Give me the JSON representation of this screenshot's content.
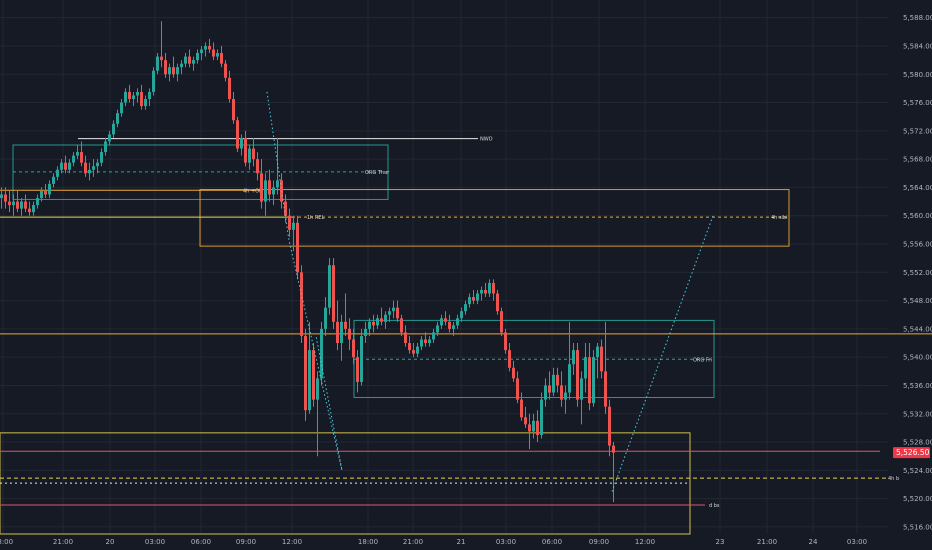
{
  "theme": {
    "background": "#161a25",
    "grid": "#232733",
    "axis_text": "#b2b5be",
    "up": "#26a69a",
    "down": "#ef5350",
    "orange": "#f0a830",
    "teal": "#26a69a",
    "cyan": "#4dd0e1",
    "yellow": "#e6d64a",
    "pink": "#e0516d",
    "white": "#e8e8e8",
    "price_tag": "#f23645"
  },
  "chart_data": {
    "type": "candlestick",
    "y_range": [
      5515.0,
      5590.5
    ],
    "x_range": [
      0,
      932
    ],
    "y_ticks": [
      "5,516.00",
      "5,520.00",
      "5,524.00",
      "5,528.00",
      "5,532.00",
      "5,536.00",
      "5,540.00",
      "5,544.00",
      "5,548.00",
      "5,552.00",
      "5,556.00",
      "5,560.00",
      "5,564.00",
      "5,568.00",
      "5,572.00",
      "5,576.00",
      "5,580.00",
      "5,584.00",
      "5,588.00"
    ],
    "x_ticks": [
      {
        "label": "18:00",
        "x": 3
      },
      {
        "label": "21:00",
        "x": 63
      },
      {
        "label": "20",
        "x": 110
      },
      {
        "label": "03:00",
        "x": 155
      },
      {
        "label": "06:00",
        "x": 201
      },
      {
        "label": "09:00",
        "x": 246
      },
      {
        "label": "12:00",
        "x": 292
      },
      {
        "label": "18:00",
        "x": 368
      },
      {
        "label": "21:00",
        "x": 413
      },
      {
        "label": "21",
        "x": 461
      },
      {
        "label": "03:00",
        "x": 506
      },
      {
        "label": "06:00",
        "x": 552
      },
      {
        "label": "09:00",
        "x": 599
      },
      {
        "label": "12:00",
        "x": 645
      },
      {
        "label": "23",
        "x": 720
      },
      {
        "label": "21:00",
        "x": 767
      },
      {
        "label": "24",
        "x": 813
      },
      {
        "label": "03:00",
        "x": 857
      }
    ],
    "current_price": "5,526.50",
    "candles": [
      [
        0,
        5562.5,
        5564,
        5561,
        5563
      ],
      [
        4,
        5563,
        5564,
        5561,
        5562
      ],
      [
        8,
        5562,
        5563.5,
        5560.5,
        5561.5
      ],
      [
        12,
        5561.5,
        5563,
        5560,
        5562
      ],
      [
        16,
        5562,
        5563.5,
        5560.5,
        5561
      ],
      [
        20,
        5561,
        5562.5,
        5560,
        5562
      ],
      [
        24,
        5562,
        5563,
        5560.5,
        5561
      ],
      [
        28,
        5561,
        5562,
        5560,
        5560.5
      ],
      [
        32,
        5560.5,
        5562,
        5560,
        5561.5
      ],
      [
        36,
        5561.5,
        5563,
        5561,
        5562.5
      ],
      [
        40,
        5562.5,
        5564,
        5562,
        5563.5
      ],
      [
        44,
        5563.5,
        5564.5,
        5562.5,
        5563
      ],
      [
        48,
        5563,
        5565,
        5562.5,
        5564.5
      ],
      [
        52,
        5564.5,
        5566,
        5564,
        5565.5
      ],
      [
        56,
        5565.5,
        5567,
        5565,
        5566.5
      ],
      [
        60,
        5566.5,
        5568,
        5566,
        5567.5
      ],
      [
        64,
        5567.5,
        5568.5,
        5566,
        5566.5
      ],
      [
        68,
        5566.5,
        5568,
        5566,
        5567.5
      ],
      [
        72,
        5567.5,
        5569,
        5567,
        5568.5
      ],
      [
        76,
        5568.5,
        5570,
        5568,
        5569
      ],
      [
        80,
        5569,
        5570.5,
        5567,
        5567.5
      ],
      [
        84,
        5567.5,
        5568.5,
        5565.5,
        5566
      ],
      [
        88,
        5566,
        5567.5,
        5565,
        5566.5
      ],
      [
        92,
        5566.5,
        5568,
        5565.5,
        5567
      ],
      [
        96,
        5567,
        5568,
        5566,
        5567.5
      ],
      [
        100,
        5567.5,
        5569.5,
        5567,
        5569
      ],
      [
        104,
        5569,
        5571,
        5568.5,
        5570.5
      ],
      [
        108,
        5570.5,
        5572,
        5570,
        5571.5
      ],
      [
        112,
        5571.5,
        5573.5,
        5571,
        5573
      ],
      [
        116,
        5573,
        5575,
        5572.5,
        5574.5
      ],
      [
        120,
        5574.5,
        5576.5,
        5574,
        5576
      ],
      [
        124,
        5576,
        5578,
        5575.5,
        5577.5
      ],
      [
        128,
        5577.5,
        5578.5,
        5576,
        5576.5
      ],
      [
        132,
        5576.5,
        5577.5,
        5575.5,
        5577
      ],
      [
        136,
        5577,
        5578,
        5576,
        5577.5
      ],
      [
        140,
        5577.5,
        5578.5,
        5575,
        5575.5
      ],
      [
        144,
        5575.5,
        5577,
        5575,
        5576.5
      ],
      [
        148,
        5576.5,
        5578,
        5575.5,
        5577.5
      ],
      [
        152,
        5577.5,
        5581,
        5577,
        5580.5
      ],
      [
        156,
        5580.5,
        5583,
        5580,
        5582.5
      ],
      [
        160,
        5582.5,
        5587.5,
        5581,
        5582
      ],
      [
        164,
        5582,
        5583,
        5579.5,
        5580
      ],
      [
        168,
        5580,
        5581.5,
        5579,
        5581
      ],
      [
        172,
        5581,
        5582.5,
        5579.5,
        5580
      ],
      [
        176,
        5580,
        5581.5,
        5579,
        5581
      ],
      [
        180,
        5581,
        5582,
        5580,
        5581.5
      ],
      [
        184,
        5581.5,
        5583,
        5581,
        5582.5
      ],
      [
        188,
        5582.5,
        5583.5,
        5581,
        5581.5
      ],
      [
        192,
        5581.5,
        5582.5,
        5580.5,
        5582
      ],
      [
        196,
        5582,
        5583.5,
        5581.5,
        5583
      ],
      [
        200,
        5583,
        5584,
        5582,
        5583.5
      ],
      [
        204,
        5583.5,
        5584.5,
        5582.5,
        5584
      ],
      [
        208,
        5584,
        5585,
        5583,
        5583.5
      ],
      [
        212,
        5583.5,
        5584.5,
        5582,
        5582.5
      ],
      [
        216,
        5582.5,
        5583.5,
        5582,
        5583
      ],
      [
        220,
        5583,
        5584,
        5581,
        5581.5
      ],
      [
        224,
        5581.5,
        5582,
        5579,
        5579.5
      ],
      [
        228,
        5579.5,
        5580.5,
        5576,
        5576.5
      ],
      [
        232,
        5576.5,
        5577.5,
        5573,
        5573.5
      ],
      [
        236,
        5573.5,
        5574,
        5569,
        5569.5
      ],
      [
        240,
        5569.5,
        5571.5,
        5568.5,
        5571
      ],
      [
        244,
        5571,
        5572,
        5567,
        5567.5
      ],
      [
        248,
        5567.5,
        5570,
        5566.5,
        5569.5
      ],
      [
        252,
        5569.5,
        5571,
        5567,
        5568
      ],
      [
        256,
        5568,
        5569,
        5565,
        5566
      ],
      [
        260,
        5566,
        5568,
        5561,
        5562
      ],
      [
        264,
        5562,
        5566,
        5560,
        5565
      ],
      [
        268,
        5565,
        5566.5,
        5562,
        5563
      ],
      [
        272,
        5563,
        5565,
        5561.5,
        5564
      ],
      [
        276,
        5564,
        5571,
        5563,
        5565
      ],
      [
        280,
        5565,
        5566,
        5561,
        5562
      ],
      [
        284,
        5562,
        5563,
        5559,
        5560
      ],
      [
        288,
        5560,
        5561,
        5557,
        5558
      ],
      [
        292,
        5558,
        5560,
        5555,
        5559
      ],
      [
        296,
        5559,
        5560,
        5551,
        5552
      ],
      [
        300,
        5552,
        5553,
        5542,
        5543
      ],
      [
        304,
        5543,
        5544,
        5531,
        5532.5
      ],
      [
        308,
        5532.5,
        5545,
        5532,
        5541
      ],
      [
        312,
        5541,
        5542,
        5533,
        5534
      ],
      [
        316,
        5534,
        5538,
        5526,
        5537
      ],
      [
        320,
        5537,
        5545,
        5536,
        5544
      ],
      [
        324,
        5544,
        5548.5,
        5543,
        5547
      ],
      [
        328,
        5547,
        5554,
        5546,
        5553
      ],
      [
        332,
        5553,
        5554,
        5544,
        5545
      ],
      [
        336,
        5545,
        5548,
        5541,
        5542
      ],
      [
        340,
        5542,
        5546,
        5539.5,
        5545
      ],
      [
        344,
        5545,
        5549,
        5543,
        5544
      ],
      [
        348,
        5544,
        5545.5,
        5541,
        5542.5
      ],
      [
        352,
        5542.5,
        5544,
        5539,
        5540
      ],
      [
        356,
        5540,
        5541,
        5535,
        5536.5
      ],
      [
        360,
        5536.5,
        5544,
        5536,
        5543
      ],
      [
        364,
        5543,
        5545,
        5542,
        5544
      ],
      [
        368,
        5544,
        5545.5,
        5543,
        5545
      ],
      [
        372,
        5545,
        5546,
        5543.5,
        5544.5
      ],
      [
        376,
        5544.5,
        5546,
        5544,
        5545.5
      ],
      [
        380,
        5545.5,
        5547,
        5544.5,
        5545
      ],
      [
        384,
        5545,
        5546.5,
        5544,
        5546
      ],
      [
        388,
        5546,
        5547,
        5545,
        5546.5
      ],
      [
        392,
        5546.5,
        5548,
        5545.5,
        5547
      ],
      [
        396,
        5547,
        5548,
        5545,
        5545.5
      ],
      [
        400,
        5545.5,
        5546,
        5543,
        5543.5
      ],
      [
        404,
        5543.5,
        5544.5,
        5541.5,
        5542
      ],
      [
        408,
        5542,
        5543,
        5540.5,
        5541
      ],
      [
        412,
        5541,
        5542,
        5540,
        5540.5
      ],
      [
        416,
        5540.5,
        5542,
        5540,
        5541.5
      ],
      [
        420,
        5541.5,
        5543,
        5541,
        5542.5
      ],
      [
        424,
        5542.5,
        5543.5,
        5541.5,
        5542
      ],
      [
        428,
        5542,
        5543,
        5541.5,
        5542.5
      ],
      [
        432,
        5542.5,
        5544,
        5542,
        5543.5
      ],
      [
        436,
        5543.5,
        5545,
        5543,
        5544.5
      ],
      [
        440,
        5544.5,
        5546,
        5544,
        5545.5
      ],
      [
        444,
        5545.5,
        5546.5,
        5544.5,
        5545
      ],
      [
        448,
        5545,
        5546,
        5543.5,
        5544
      ],
      [
        452,
        5544,
        5545,
        5543,
        5544.5
      ],
      [
        456,
        5544.5,
        5546,
        5544,
        5545.5
      ],
      [
        460,
        5545.5,
        5547,
        5545,
        5546.5
      ],
      [
        464,
        5546.5,
        5548,
        5546,
        5547.5
      ],
      [
        468,
        5547.5,
        5549,
        5547,
        5548.5
      ],
      [
        472,
        5548.5,
        5549.5,
        5547.5,
        5548
      ],
      [
        476,
        5548,
        5549.5,
        5547.5,
        5549
      ],
      [
        480,
        5549,
        5550,
        5548,
        5549.5
      ],
      [
        484,
        5549.5,
        5550.5,
        5548.5,
        5549
      ],
      [
        488,
        5549,
        5551,
        5548.5,
        5550.5
      ],
      [
        492,
        5550.5,
        5551,
        5548,
        5549
      ],
      [
        496,
        5549,
        5549.5,
        5546,
        5546.5
      ],
      [
        500,
        5546.5,
        5547,
        5543,
        5543.5
      ],
      [
        504,
        5543.5,
        5544,
        5540.5,
        5541
      ],
      [
        508,
        5541,
        5542,
        5538,
        5538.5
      ],
      [
        512,
        5538.5,
        5539.5,
        5536.5,
        5537
      ],
      [
        516,
        5537,
        5538,
        5533.5,
        5534
      ],
      [
        520,
        5534,
        5535,
        5531,
        5531.5
      ],
      [
        524,
        5531.5,
        5533,
        5530,
        5530.5
      ],
      [
        528,
        5530.5,
        5532,
        5527,
        5529.5
      ],
      [
        532,
        5529.5,
        5532,
        5528.5,
        5531
      ],
      [
        536,
        5531,
        5532.5,
        5528,
        5529
      ],
      [
        540,
        5529,
        5535,
        5528.5,
        5534
      ],
      [
        544,
        5534,
        5537,
        5533,
        5536
      ],
      [
        548,
        5536,
        5538,
        5534,
        5535
      ],
      [
        552,
        5535,
        5538.5,
        5534.5,
        5537.5
      ],
      [
        556,
        5537.5,
        5538.5,
        5535,
        5536
      ],
      [
        560,
        5536,
        5538,
        5533,
        5534
      ],
      [
        564,
        5534,
        5536,
        5532,
        5535
      ],
      [
        568,
        5535,
        5545,
        5534,
        5539
      ],
      [
        572,
        5539,
        5542,
        5537.5,
        5541
      ],
      [
        576,
        5541,
        5542,
        5533,
        5534
      ],
      [
        580,
        5534,
        5538,
        5530.5,
        5537
      ],
      [
        584,
        5537,
        5542,
        5535,
        5540
      ],
      [
        588,
        5540,
        5542,
        5532.5,
        5533.5
      ],
      [
        592,
        5533.5,
        5541,
        5533,
        5540
      ],
      [
        596,
        5540,
        5542,
        5537,
        5541.5
      ],
      [
        600,
        5541.5,
        5542.5,
        5537,
        5538
      ],
      [
        604,
        5538,
        5545,
        5532,
        5533
      ],
      [
        608,
        5533,
        5534,
        5526,
        5527.5
      ],
      [
        612,
        5527.5,
        5528,
        5519.5,
        5526.5
      ]
    ],
    "rectangles": [
      {
        "name": "org-thur-box",
        "x1": 13,
        "x2": 388,
        "y1": 5570.0,
        "y2": 5562.3,
        "color": "teal"
      },
      {
        "name": "four-h-sibi-box",
        "x1": 200,
        "x2": 789,
        "y1": 5563.7,
        "y2": 5555.7,
        "color": "orange"
      },
      {
        "name": "org-fri-box",
        "x1": 354,
        "x2": 714,
        "y1": 5545.2,
        "y2": 5534.3,
        "color": "teal"
      },
      {
        "name": "yellow-box",
        "x1": 0,
        "x2": 690,
        "y1": 5529.3,
        "y2": 5515.0,
        "color": "yellow"
      }
    ],
    "levels": [
      {
        "name": "nwo-line",
        "x1": 78,
        "x2": 478,
        "y": 5570.9,
        "color": "white",
        "dash": "",
        "label": "NWO",
        "label_x": 480
      },
      {
        "name": "org-thur-line",
        "x1": 13,
        "x2": 388,
        "y": 5566.2,
        "color": "teal",
        "dash": "3,3",
        "label": "ORG Thur",
        "label_x": 365
      },
      {
        "name": "four-h-ob-line",
        "x1": 0,
        "x2": 262,
        "y": 5563.6,
        "color": "orange",
        "dash": "",
        "label": "4h +OB",
        "label_x": 243
      },
      {
        "name": "one-h-rel-line",
        "x1": 0,
        "x2": 293,
        "y": 5559.8,
        "color": "yellow",
        "dash": "",
        "label": "1h REL",
        "label_x": 307
      },
      {
        "name": "four-h-sibi-line",
        "x1": 292,
        "x2": 789,
        "y": 5559.8,
        "color": "orange",
        "dash": "3,3",
        "label": "4h sibi",
        "label_x": 771
      },
      {
        "name": "orange-level-line",
        "x1": 0,
        "x2": 932,
        "y": 5543.3,
        "color": "orange",
        "dash": "",
        "label": "",
        "label_x": 0
      },
      {
        "name": "org-fri-line",
        "x1": 354,
        "x2": 714,
        "y": 5539.7,
        "color": "teal",
        "dash": "3,3",
        "label": "ORG Fri",
        "label_x": 693
      },
      {
        "name": "pink-line-upper",
        "x1": 0,
        "x2": 880,
        "y": 5526.7,
        "color": "pink",
        "dash": "",
        "label": "",
        "label_x": 0
      },
      {
        "name": "four-h-b-line",
        "x1": 0,
        "x2": 886,
        "y": 5522.9,
        "color": "yellow",
        "dash": "4,3",
        "label": "4h b",
        "label_x": 888
      },
      {
        "name": "white-dash-line",
        "x1": 0,
        "x2": 690,
        "y": 5522.2,
        "color": "white",
        "dash": "2,3",
        "label": "",
        "label_x": 0
      },
      {
        "name": "d-bs-line",
        "x1": 0,
        "x2": 705,
        "y": 5519.1,
        "color": "pink",
        "dash": "",
        "label": "d bs",
        "label_x": 709
      }
    ],
    "paths": [
      {
        "name": "projection-path-1",
        "color": "cyan",
        "points": [
          [
            267,
            5577.5
          ],
          [
            289,
            5556.5
          ],
          [
            342,
            5524.0
          ],
          [
            316,
            5543.0
          ]
        ]
      },
      {
        "name": "projection-path-2",
        "color": "cyan",
        "points": [
          [
            612,
            5521.0
          ],
          [
            713,
            5560.0
          ]
        ]
      }
    ]
  }
}
